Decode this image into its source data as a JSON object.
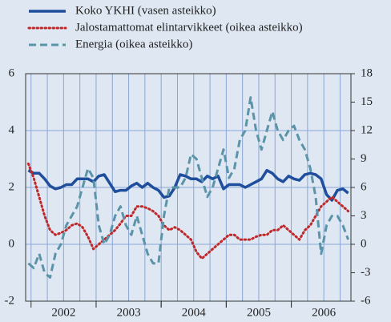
{
  "chart_data": {
    "type": "line",
    "categories": [
      null,
      null,
      null,
      null,
      null,
      null,
      null,
      "2002",
      null,
      null,
      null,
      null,
      null,
      null,
      null,
      null,
      null,
      null,
      null,
      "2003",
      null,
      null,
      null,
      null,
      null,
      null,
      null,
      null,
      null,
      null,
      null,
      "2004",
      null,
      null,
      null,
      null,
      null,
      null,
      null,
      null,
      null,
      null,
      null,
      "2005",
      null,
      null,
      null,
      null,
      null,
      null,
      null,
      null,
      null,
      null,
      null,
      "2006",
      null,
      null,
      null,
      null
    ],
    "series": [
      {
        "name": "Koko YKHI (vasen asteikko)",
        "color": "#1f4e9c",
        "style": "solid",
        "axis": "y",
        "values": [
          2.6,
          2.5,
          2.5,
          2.3,
          2.05,
          1.95,
          2.0,
          2.1,
          2.1,
          2.3,
          2.3,
          2.3,
          2.2,
          2.4,
          2.45,
          2.15,
          1.85,
          1.9,
          1.9,
          2.05,
          2.15,
          2.0,
          2.15,
          2.0,
          1.9,
          1.65,
          1.7,
          2.0,
          2.45,
          2.4,
          2.3,
          2.3,
          2.2,
          2.4,
          2.3,
          2.4,
          1.95,
          2.1,
          2.1,
          2.1,
          2.0,
          2.1,
          2.2,
          2.3,
          2.6,
          2.5,
          2.3,
          2.2,
          2.4,
          2.3,
          2.25,
          2.45,
          2.5,
          2.45,
          2.3,
          1.75,
          1.55,
          1.9,
          1.95,
          1.8
        ]
      },
      {
        "name": "Jalostamattomat elintarvikkeet (oikea asteikko)",
        "color": "#c0282a",
        "style": "dotted",
        "axis": "y2",
        "values": [
          8.5,
          7.0,
          5.0,
          3.0,
          1.5,
          1.0,
          1.2,
          1.5,
          2.0,
          2.2,
          1.8,
          0.8,
          -0.5,
          0.0,
          0.5,
          1.0,
          1.5,
          2.2,
          3.0,
          3.0,
          4.0,
          4.0,
          3.8,
          3.5,
          3.0,
          2.0,
          1.5,
          1.8,
          1.5,
          1.0,
          0.5,
          -0.8,
          -1.5,
          -1.0,
          -0.5,
          0.0,
          0.5,
          1.0,
          1.0,
          0.5,
          0.5,
          0.5,
          0.8,
          1.0,
          1.0,
          1.5,
          1.5,
          2.0,
          1.5,
          1.0,
          0.5,
          1.5,
          2.0,
          3.0,
          4.0,
          4.5,
          5.0,
          4.5,
          4.0,
          3.5
        ]
      },
      {
        "name": "Energia (oikea asteikko)",
        "color": "#5b94a8",
        "style": "dashed",
        "axis": "y2",
        "values": [
          -2.0,
          -2.5,
          -1.0,
          -3.0,
          -3.5,
          -1.0,
          0.0,
          2.0,
          3.0,
          4.0,
          6.0,
          8.0,
          7.0,
          2.0,
          0.0,
          1.0,
          3.0,
          4.0,
          2.0,
          1.0,
          3.0,
          1.0,
          -1.0,
          -2.0,
          -2.0,
          3.0,
          6.0,
          6.0,
          6.0,
          7.0,
          9.5,
          9.0,
          7.0,
          5.0,
          6.0,
          8.0,
          10.0,
          7.0,
          8.0,
          11.0,
          12.0,
          15.5,
          12.0,
          10.0,
          12.0,
          14.0,
          12.0,
          11.0,
          12.0,
          12.5,
          11.0,
          10.0,
          8.0,
          5.0,
          -1.0,
          2.0,
          3.0,
          3.0,
          2.0,
          0.5
        ]
      }
    ],
    "ylim": [
      -2,
      6
    ],
    "yticks": [
      -2,
      0,
      2,
      4,
      6
    ],
    "y2lim": [
      -6,
      18
    ],
    "y2ticks": [
      -6,
      -3,
      0,
      3,
      6,
      9,
      12,
      15,
      18
    ],
    "grid": true,
    "legend": "top-left"
  }
}
